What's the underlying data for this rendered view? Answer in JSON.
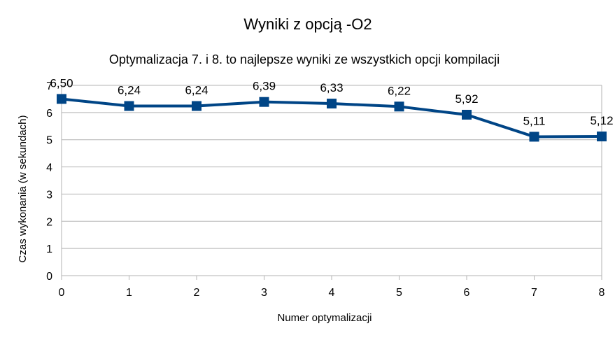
{
  "chart_data": {
    "type": "line",
    "title": "Wyniki z opcją -O2",
    "subtitle": "Optymalizacja 7. i 8. to najlepsze wyniki ze wszystkich opcji kompilacji",
    "xlabel": "Numer optymalizacji",
    "ylabel": "Czas wykonania (w sekundach)",
    "x": [
      0,
      1,
      2,
      3,
      4,
      5,
      6,
      7,
      8
    ],
    "x_ticks": [
      "0",
      "1",
      "2",
      "3",
      "4",
      "5",
      "6",
      "7",
      "8"
    ],
    "y_ticks": [
      "0",
      "1",
      "2",
      "3",
      "4",
      "5",
      "6",
      "7"
    ],
    "xlim": [
      0,
      8
    ],
    "ylim": [
      0,
      7
    ],
    "grid": true,
    "series": [
      {
        "values": [
          6.5,
          6.24,
          6.24,
          6.39,
          6.33,
          6.22,
          5.92,
          5.11,
          5.12
        ],
        "labels": [
          "6,50",
          "6,24",
          "6,24",
          "6,39",
          "6,33",
          "6,22",
          "5,92",
          "5,11",
          "5,12"
        ],
        "color": "#004586",
        "marker": "square"
      }
    ]
  }
}
